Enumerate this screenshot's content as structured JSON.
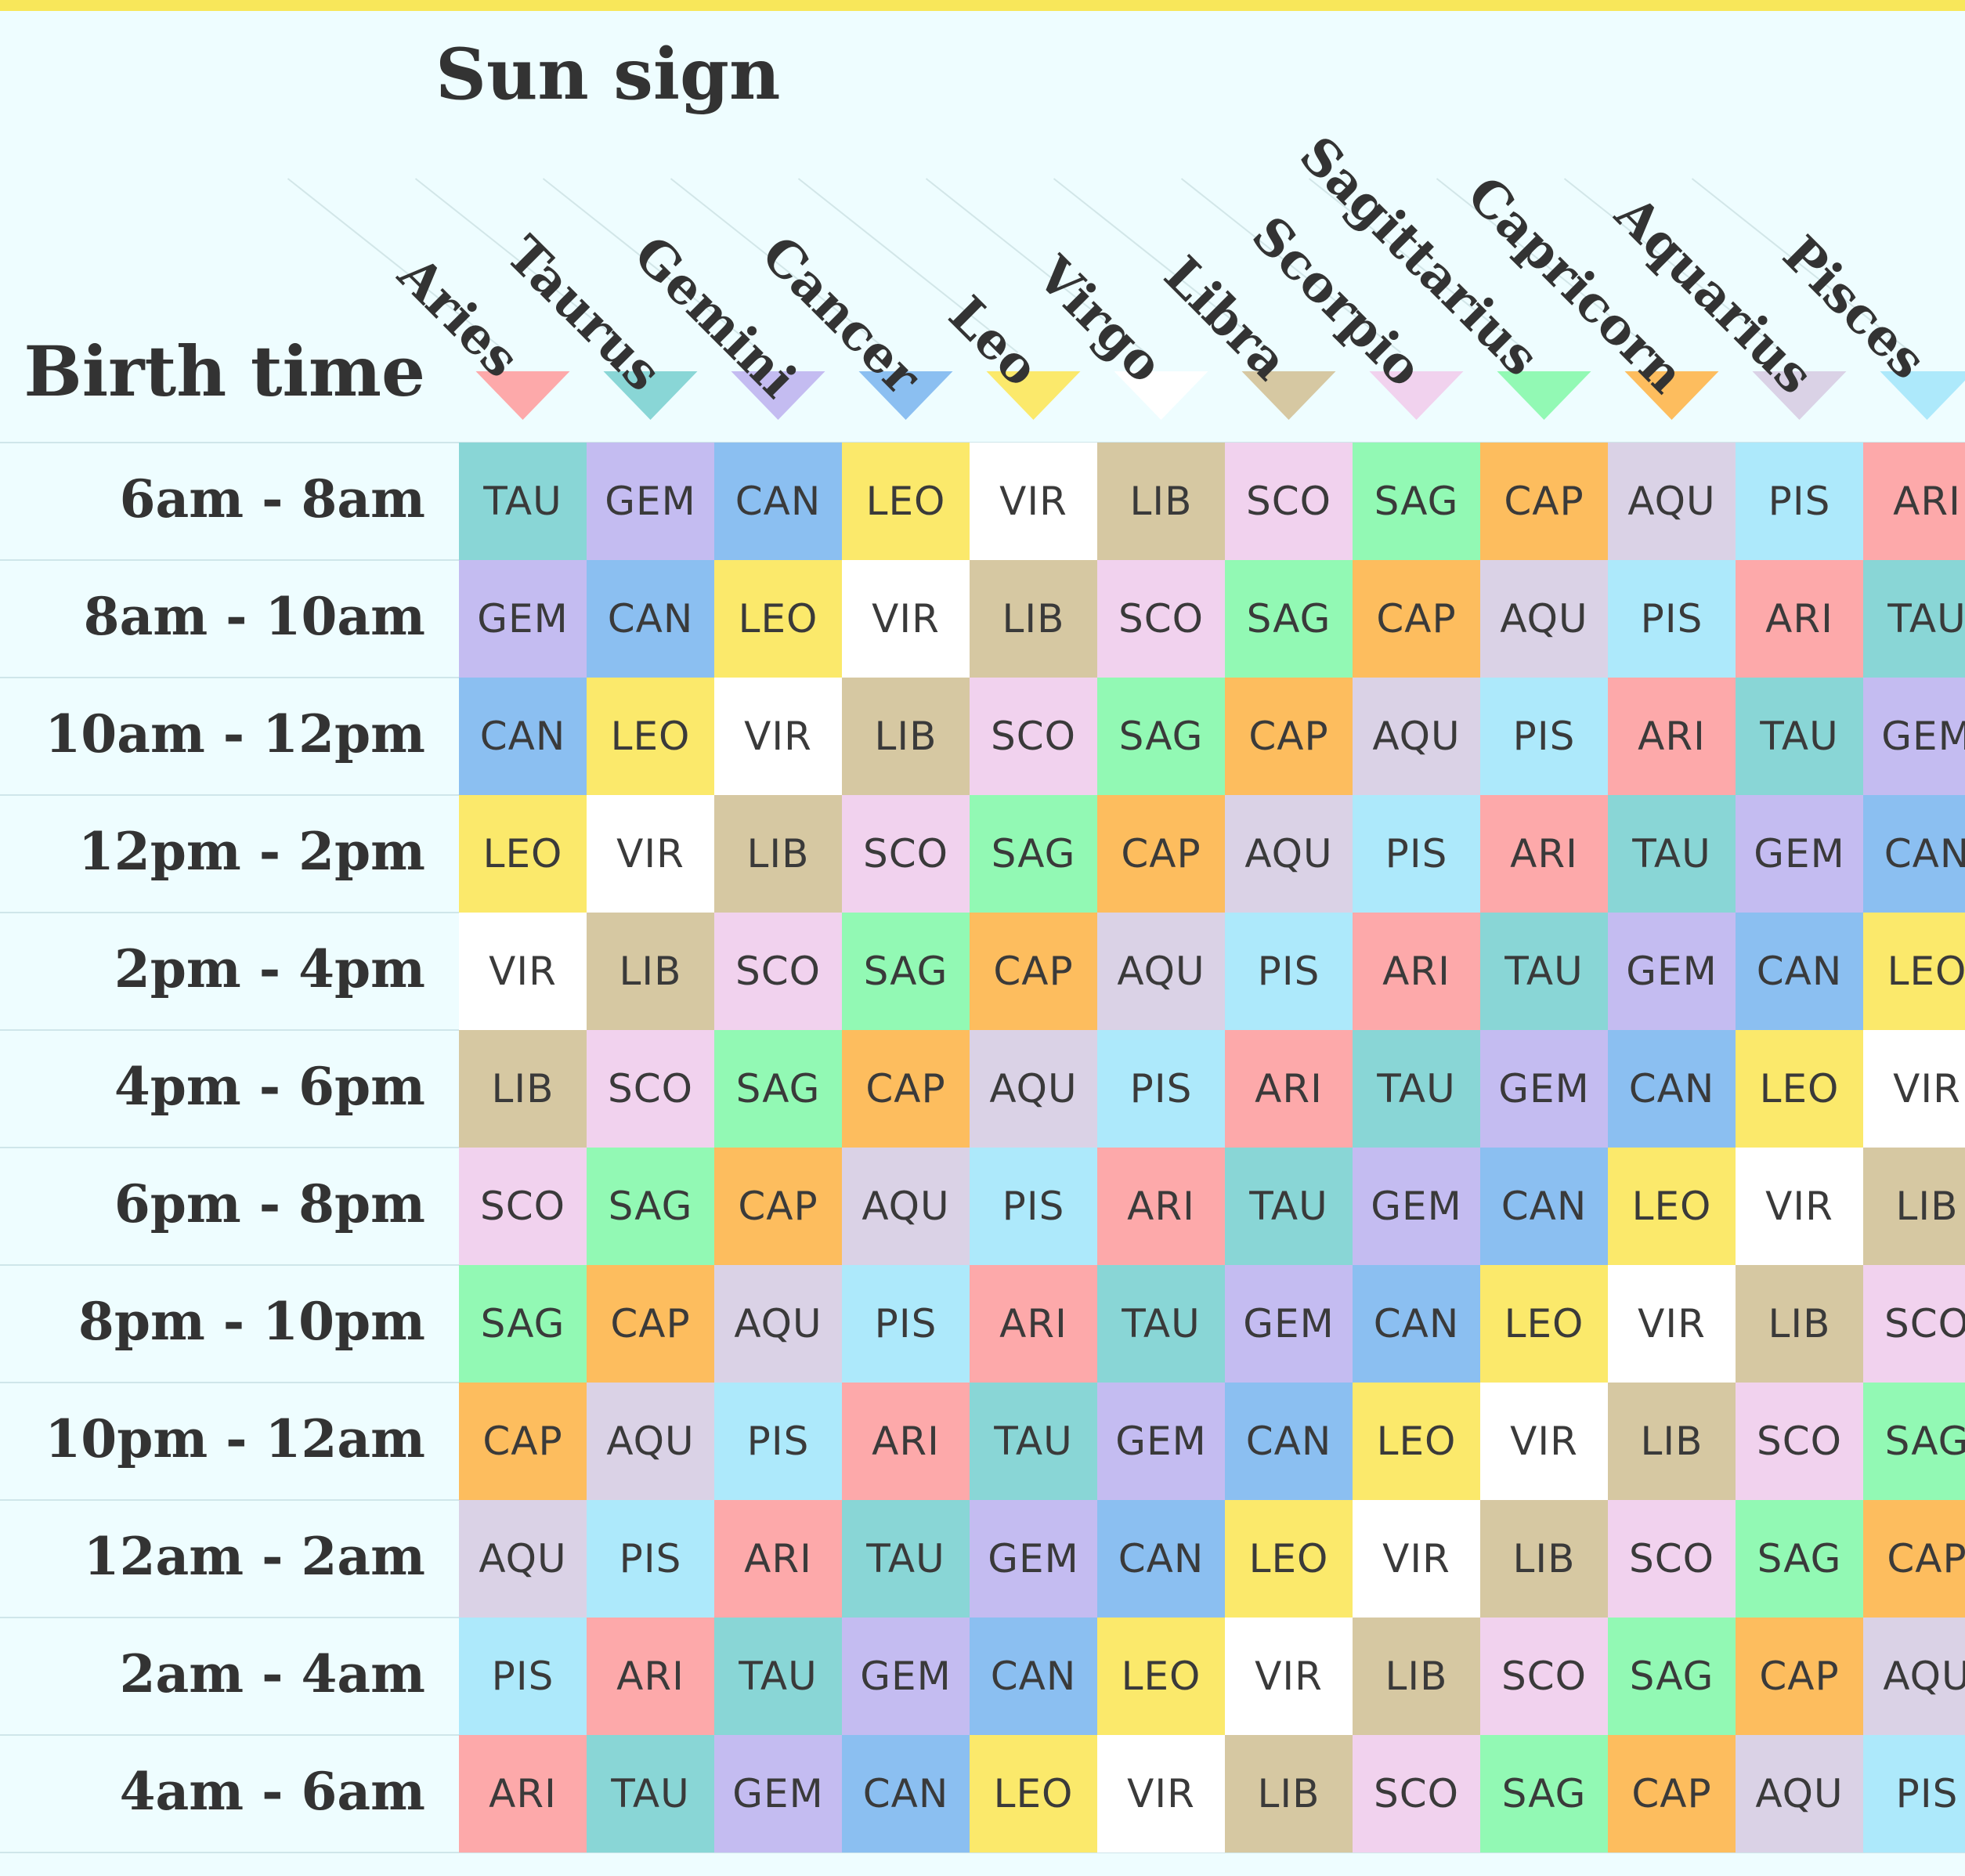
{
  "chart_data": {
    "type": "table",
    "title": "Sun sign",
    "row_axis_title": "Birth time",
    "columns": [
      "Aries",
      "Taurus",
      "Gemini",
      "Cancer",
      "Leo",
      "Virgo",
      "Libra",
      "Scorpio",
      "Sagittarius",
      "Capricorn",
      "Aquarius",
      "Pisces"
    ],
    "rows": [
      "6am - 8am",
      "8am - 10am",
      "10am - 12pm",
      "12pm - 2pm",
      "2pm - 4pm",
      "4pm - 6pm",
      "6pm - 8pm",
      "8pm - 10pm",
      "10pm - 12am",
      "12am - 2am",
      "2am - 4am",
      "4am - 6am"
    ],
    "cells": [
      [
        "TAU",
        "GEM",
        "CAN",
        "LEO",
        "VIR",
        "LIB",
        "SCO",
        "SAG",
        "CAP",
        "AQU",
        "PIS",
        "ARI"
      ],
      [
        "GEM",
        "CAN",
        "LEO",
        "VIR",
        "LIB",
        "SCO",
        "SAG",
        "CAP",
        "AQU",
        "PIS",
        "ARI",
        "TAU"
      ],
      [
        "CAN",
        "LEO",
        "VIR",
        "LIB",
        "SCO",
        "SAG",
        "CAP",
        "AQU",
        "PIS",
        "ARI",
        "TAU",
        "GEM"
      ],
      [
        "LEO",
        "VIR",
        "LIB",
        "SCO",
        "SAG",
        "CAP",
        "AQU",
        "PIS",
        "ARI",
        "TAU",
        "GEM",
        "CAN"
      ],
      [
        "VIR",
        "LIB",
        "SCO",
        "SAG",
        "CAP",
        "AQU",
        "PIS",
        "ARI",
        "TAU",
        "GEM",
        "CAN",
        "LEO"
      ],
      [
        "LIB",
        "SCO",
        "SAG",
        "CAP",
        "AQU",
        "PIS",
        "ARI",
        "TAU",
        "GEM",
        "CAN",
        "LEO",
        "VIR"
      ],
      [
        "SCO",
        "SAG",
        "CAP",
        "AQU",
        "PIS",
        "ARI",
        "TAU",
        "GEM",
        "CAN",
        "LEO",
        "VIR",
        "LIB"
      ],
      [
        "SAG",
        "CAP",
        "AQU",
        "PIS",
        "ARI",
        "TAU",
        "GEM",
        "CAN",
        "LEO",
        "VIR",
        "LIB",
        "SCO"
      ],
      [
        "CAP",
        "AQU",
        "PIS",
        "ARI",
        "TAU",
        "GEM",
        "CAN",
        "LEO",
        "VIR",
        "LIB",
        "SCO",
        "SAG"
      ],
      [
        "AQU",
        "PIS",
        "ARI",
        "TAU",
        "GEM",
        "CAN",
        "LEO",
        "VIR",
        "LIB",
        "SCO",
        "SAG",
        "CAP"
      ],
      [
        "PIS",
        "ARI",
        "TAU",
        "GEM",
        "CAN",
        "LEO",
        "VIR",
        "LIB",
        "SCO",
        "SAG",
        "CAP",
        "AQU"
      ],
      [
        "ARI",
        "TAU",
        "GEM",
        "CAN",
        "LEO",
        "VIR",
        "LIB",
        "SCO",
        "SAG",
        "CAP",
        "AQU",
        "PIS"
      ]
    ],
    "colors": {
      "ARI": "#fda9aa",
      "TAU": "#89d6d6",
      "GEM": "#c4bcf1",
      "CAN": "#8bbff1",
      "LEO": "#fbe96b",
      "VIR": "#ffffff",
      "LIB": "#d6c8a2",
      "SCO": "#f1d2ee",
      "SAG": "#92f9b4",
      "CAP": "#fdbd5e",
      "AQU": "#dad2e6",
      "PIS": "#ade9fb"
    },
    "column_marker_colors": [
      "#fda9aa",
      "#89d6d6",
      "#c4bcf1",
      "#8bbff1",
      "#fbe96b",
      "#ffffff",
      "#d6c8a2",
      "#f1d2ee",
      "#92f9b4",
      "#fdbd5e",
      "#dad2e6",
      "#ade9fb"
    ],
    "background": "#eefdff",
    "accent_bar": "#f8e75a",
    "text_color": "#333333"
  }
}
